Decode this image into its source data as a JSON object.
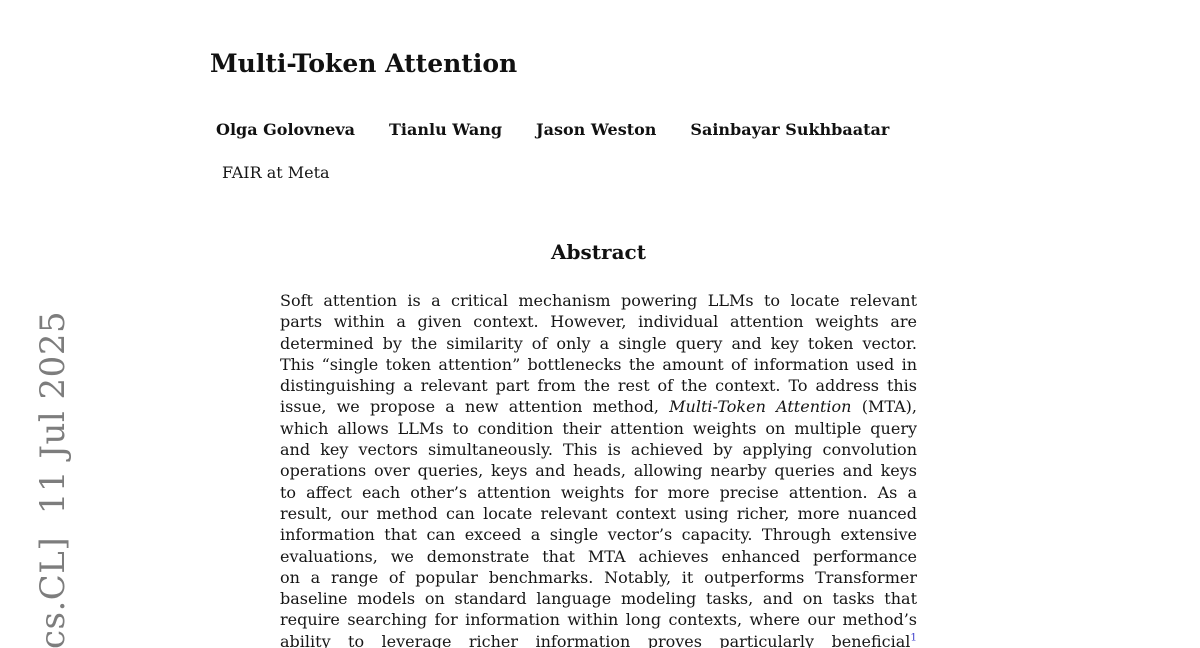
{
  "page": {
    "background": "#ffffff",
    "text_color": "#161616"
  },
  "watermark": {
    "text": "cs.CL]  11 Jul 2025",
    "color": "#7d7d7d"
  },
  "header": {
    "title": "Multi-Token Attention",
    "authors": [
      "Olga Golovneva",
      "Tianlu Wang",
      "Jason Weston",
      "Sainbayar Sukhbaatar"
    ],
    "affiliation": "FAIR at Meta"
  },
  "abstract": {
    "heading": "Abstract",
    "link_color": "#4141cc",
    "lines": [
      [
        {
          "t": "Soft attention is a critical mechanism powering LLMs to locate relevant"
        }
      ],
      [
        {
          "t": "parts within a given context. However, individual attention weights are"
        }
      ],
      [
        {
          "t": "determined by the similarity of only a single query and key token vector."
        }
      ],
      [
        {
          "t": "This “single token attention” bottlenecks the amount of information used in"
        }
      ],
      [
        {
          "t": "distinguishing a relevant part from the rest of the context. To address this"
        }
      ],
      [
        {
          "t": "issue, we propose a new attention method, "
        },
        {
          "t": "Multi-Token Attention",
          "i": true
        },
        {
          "t": " (MTA),"
        }
      ],
      [
        {
          "t": "which allows LLMs to condition their attention weights on multiple query"
        }
      ],
      [
        {
          "t": "and key vectors simultaneously. This is achieved by applying convolution"
        }
      ],
      [
        {
          "t": "operations over queries, keys and heads, allowing nearby queries and keys"
        }
      ],
      [
        {
          "t": "to affect each other’s attention weights for more precise attention. As a"
        }
      ],
      [
        {
          "t": "result, our method can locate relevant context using richer, more nuanced"
        }
      ],
      [
        {
          "t": "information that can exceed a single vector’s capacity. Through extensive"
        }
      ],
      [
        {
          "t": "evaluations, we demonstrate that MTA achieves enhanced performance"
        }
      ],
      [
        {
          "t": "on a range of popular benchmarks. Notably, it outperforms Transformer"
        }
      ],
      [
        {
          "t": "baseline models on standard language modeling tasks, and on tasks that"
        }
      ],
      [
        {
          "t": "require searching for information within long contexts, where our method’s"
        }
      ],
      [
        {
          "t": "ability to leverage richer information proves particularly beneficial"
        },
        {
          "t": "1",
          "sup": true
        }
      ]
    ]
  }
}
